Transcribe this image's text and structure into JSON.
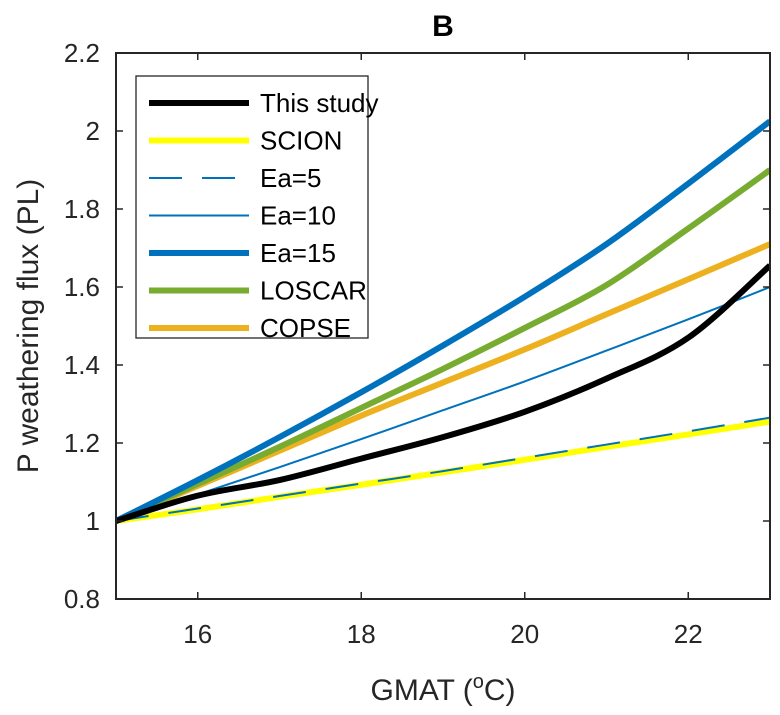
{
  "chart_data": {
    "type": "line",
    "title": "B",
    "xlabel": "GMAT (",
    "xlabel_sup": "o",
    "xlabel_suffix": "C)",
    "ylabel": "P weathering flux (PL)",
    "xlim": [
      15,
      23
    ],
    "ylim": [
      0.8,
      2.2
    ],
    "xticks": [
      16,
      18,
      20,
      22
    ],
    "xtick_labels": [
      "16",
      "18",
      "20",
      "22"
    ],
    "yticks": [
      0.8,
      1.0,
      1.2,
      1.4,
      1.6,
      1.8,
      2.0,
      2.2
    ],
    "ytick_labels": [
      "0.8",
      "1",
      "1.2",
      "1.4",
      "1.6",
      "1.8",
      "2",
      "2.2"
    ],
    "grid": false,
    "legend_position": "top-left",
    "x": [
      15,
      16,
      17,
      18,
      19,
      20,
      21,
      22,
      23
    ],
    "series": [
      {
        "name": "This study",
        "color": "#000000",
        "style": "solid",
        "weight": "thick",
        "values": [
          1.0,
          1.065,
          1.105,
          1.16,
          1.215,
          1.28,
          1.365,
          1.47,
          1.655
        ]
      },
      {
        "name": "SCION",
        "color": "#ffff00",
        "style": "solid",
        "weight": "thick",
        "values": [
          1.0,
          1.03,
          1.062,
          1.093,
          1.125,
          1.157,
          1.19,
          1.222,
          1.255
        ]
      },
      {
        "name": "Ea=5",
        "color": "#0072bd",
        "style": "dashed",
        "weight": "thin",
        "values": [
          1.0,
          1.032,
          1.064,
          1.096,
          1.128,
          1.162,
          1.196,
          1.23,
          1.265
        ]
      },
      {
        "name": "Ea=10",
        "color": "#0072bd",
        "style": "solid",
        "weight": "thin",
        "values": [
          1.0,
          1.068,
          1.138,
          1.21,
          1.284,
          1.358,
          1.437,
          1.517,
          1.6
        ]
      },
      {
        "name": "Ea=15",
        "color": "#0072bd",
        "style": "solid",
        "weight": "thick",
        "values": [
          1.0,
          1.105,
          1.215,
          1.33,
          1.45,
          1.575,
          1.71,
          1.865,
          2.025
        ]
      },
      {
        "name": "LOSCAR",
        "color": "#77ac30",
        "style": "solid",
        "weight": "thick",
        "values": [
          1.0,
          1.095,
          1.19,
          1.29,
          1.39,
          1.495,
          1.605,
          1.75,
          1.9
        ]
      },
      {
        "name": "COPSE",
        "color": "#edb120",
        "style": "solid",
        "weight": "thick",
        "values": [
          1.0,
          1.09,
          1.18,
          1.27,
          1.355,
          1.44,
          1.53,
          1.62,
          1.71
        ]
      }
    ]
  }
}
